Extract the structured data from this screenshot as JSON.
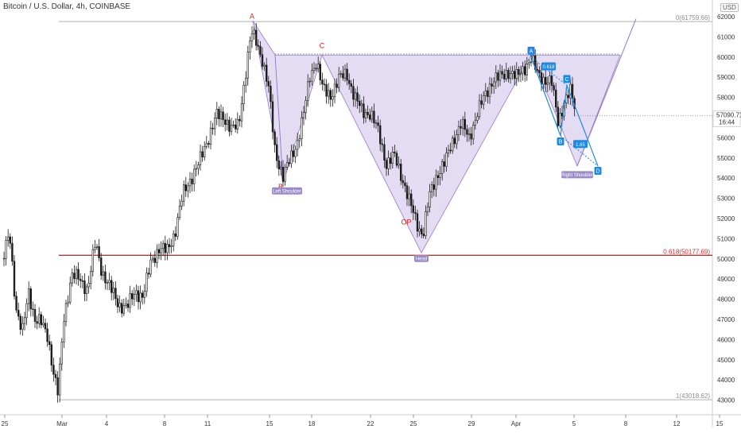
{
  "header": {
    "title": "Bitcoin / U.S. Dollar, 4h, COINBASE",
    "currency": "USD"
  },
  "chart_data": {
    "type": "candlestick",
    "title": "Bitcoin / U.S. Dollar, 4h, COINBASE",
    "ylim": [
      42550,
      62350
    ],
    "y_ticks": [
      43000,
      44000,
      45000,
      46000,
      47000,
      48000,
      49000,
      50000,
      51000,
      52000,
      53000,
      54000,
      55000,
      56000,
      57000,
      58000,
      59000,
      60000,
      61000,
      62000
    ],
    "x_ticks": [
      "25",
      "Mar",
      "4",
      "8",
      "11",
      "15",
      "18",
      "22",
      "25",
      "29",
      "Apr",
      "5",
      "8",
      "12",
      "15"
    ],
    "fib_levels": [
      {
        "label": "0(61759.66)",
        "value": 61760
      },
      {
        "label": "0.618(50177.69)",
        "value": 50178,
        "color": "#e02020"
      },
      {
        "label": "1(43018.62)",
        "value": 43019
      }
    ],
    "current_price": {
      "label": "57090.71",
      "time": "16:44",
      "value": 57090
    },
    "point_labels": [
      {
        "text": "A",
        "value": 61900
      },
      {
        "text": "B",
        "value": 53450
      },
      {
        "text": "C",
        "value": 60450
      },
      {
        "text": "OP",
        "value": 51700
      }
    ],
    "pattern_tags": [
      {
        "text": "Left Shoulder",
        "value": 53350
      },
      {
        "text": "Head",
        "value": 50000
      },
      {
        "text": "Right Shoulder",
        "value": 54150
      }
    ],
    "projection_badges": [
      "A",
      "B",
      "C",
      "D"
    ],
    "projection_ratios": [
      "0.618",
      "1.65"
    ],
    "colors": {
      "up": "#ffffff",
      "down": "#1c1c1c",
      "pattern_fill": "#d1c4e9",
      "pattern_line": "#9575cd",
      "projection": "#1e88e5",
      "fib_red": "#e02020"
    }
  }
}
